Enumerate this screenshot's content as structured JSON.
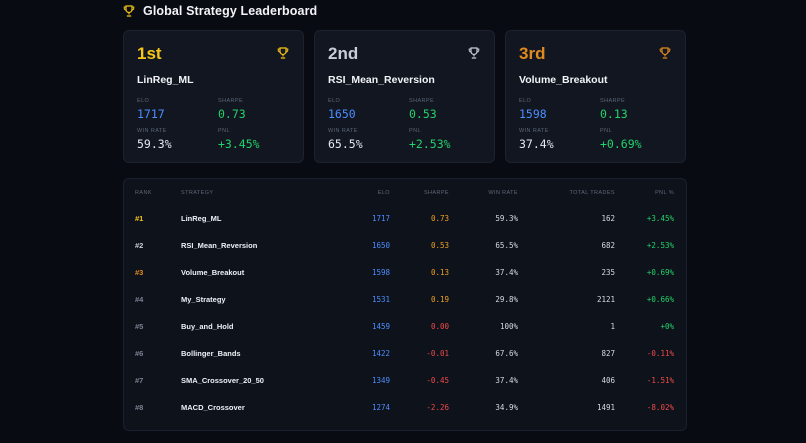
{
  "header": {
    "title": "Global Strategy Leaderboard"
  },
  "colors": {
    "gold": "#f5c518",
    "silver": "#c9ced6",
    "bronze": "#e08a1e",
    "blue": "#4c8dff",
    "orange": "#f0a020",
    "green": "#22d36a",
    "red": "#f04a4a",
    "muted": "#5d6676"
  },
  "podium": [
    {
      "rank": "1st",
      "name": "LinReg_ML",
      "elo_label": "ELO",
      "elo": "1717",
      "sharpe_label": "SHARPE",
      "sharpe": "0.73",
      "win_rate_label": "WIN RATE",
      "win_rate": "59.3%",
      "pnl_label": "PNL",
      "pnl": "+3.45%"
    },
    {
      "rank": "2nd",
      "name": "RSI_Mean_Reversion",
      "elo_label": "ELO",
      "elo": "1650",
      "sharpe_label": "SHARPE",
      "sharpe": "0.53",
      "win_rate_label": "WIN RATE",
      "win_rate": "65.5%",
      "pnl_label": "PNL",
      "pnl": "+2.53%"
    },
    {
      "rank": "3rd",
      "name": "Volume_Breakout",
      "elo_label": "ELO",
      "elo": "1598",
      "sharpe_label": "SHARPE",
      "sharpe": "0.13",
      "win_rate_label": "WIN RATE",
      "win_rate": "37.4%",
      "pnl_label": "PNL",
      "pnl": "+0.69%"
    }
  ],
  "table": {
    "headers": [
      "RANK",
      "STRATEGY",
      "ELO",
      "SHARPE",
      "WIN RATE",
      "TOTAL TRADES",
      "PNL %"
    ],
    "rows": [
      {
        "rank": "#1",
        "strategy": "LinReg_ML",
        "elo": "1717",
        "sharpe": "0.73",
        "win_rate": "59.3%",
        "trades": "162",
        "pnl": "+3.45%"
      },
      {
        "rank": "#2",
        "strategy": "RSI_Mean_Reversion",
        "elo": "1650",
        "sharpe": "0.53",
        "win_rate": "65.5%",
        "trades": "682",
        "pnl": "+2.53%"
      },
      {
        "rank": "#3",
        "strategy": "Volume_Breakout",
        "elo": "1598",
        "sharpe": "0.13",
        "win_rate": "37.4%",
        "trades": "235",
        "pnl": "+0.69%"
      },
      {
        "rank": "#4",
        "strategy": "My_Strategy",
        "elo": "1531",
        "sharpe": "0.19",
        "win_rate": "29.8%",
        "trades": "2121",
        "pnl": "+0.66%"
      },
      {
        "rank": "#5",
        "strategy": "Buy_and_Hold",
        "elo": "1459",
        "sharpe": "0.00",
        "win_rate": "100%",
        "trades": "1",
        "pnl": "+0%"
      },
      {
        "rank": "#6",
        "strategy": "Bollinger_Bands",
        "elo": "1422",
        "sharpe": "-0.01",
        "win_rate": "67.6%",
        "trades": "827",
        "pnl": "-0.11%"
      },
      {
        "rank": "#7",
        "strategy": "SMA_Crossover_20_50",
        "elo": "1349",
        "sharpe": "-0.45",
        "win_rate": "37.4%",
        "trades": "406",
        "pnl": "-1.51%"
      },
      {
        "rank": "#8",
        "strategy": "MACD_Crossover",
        "elo": "1274",
        "sharpe": "-2.26",
        "win_rate": "34.9%",
        "trades": "1491",
        "pnl": "-8.02%"
      }
    ]
  }
}
